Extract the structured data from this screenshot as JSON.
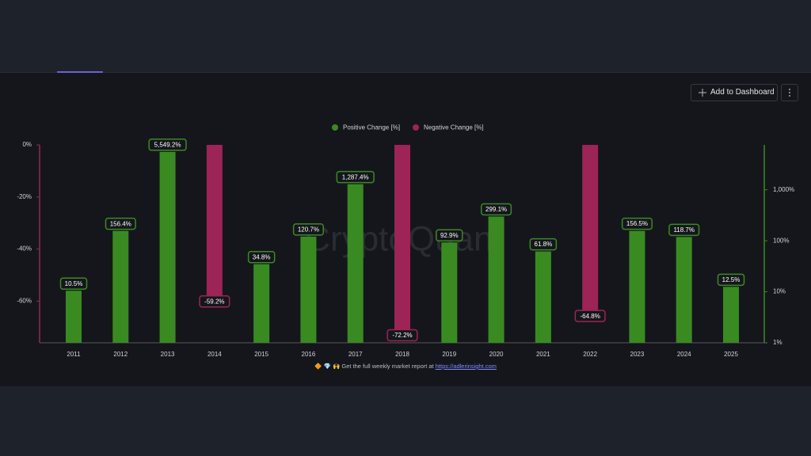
{
  "toolbar": {
    "button": "Add to Dashboard"
  },
  "chart_data": {
    "type": "bar",
    "watermark": "CryptoQuant",
    "categories": [
      "2011",
      "2012",
      "2013",
      "2014",
      "2015",
      "2016",
      "2017",
      "2018",
      "2019",
      "2020",
      "2021",
      "2022",
      "2023",
      "2024",
      "2025"
    ],
    "series": [
      {
        "name": "Positive Change [%]",
        "color": "#3a8a22",
        "axis": "y2",
        "values": [
          10.5,
          156.4,
          5549.2,
          null,
          34.8,
          120.7,
          1287.4,
          null,
          92.9,
          299.1,
          61.8,
          null,
          156.5,
          118.7,
          12.5
        ],
        "value_labels": [
          "10.5%",
          "156.4%",
          "5,549.2%",
          null,
          "34.8%",
          "120.7%",
          "1,287.4%",
          null,
          "92.9%",
          "299.1%",
          "61.8%",
          null,
          "156.5%",
          "118.7%",
          "12.5%"
        ]
      },
      {
        "name": "Negative Change [%]",
        "color": "#9c2457",
        "values": [
          null,
          null,
          null,
          -59.2,
          null,
          null,
          null,
          -72.2,
          null,
          null,
          null,
          -64.8,
          null,
          null,
          null
        ],
        "value_labels": [
          null,
          null,
          null,
          "-59.2%",
          null,
          null,
          null,
          "-72.2%",
          null,
          null,
          null,
          "-64.8%",
          null,
          null,
          null
        ]
      }
    ],
    "ylim": [
      -76,
      0
    ],
    "yticks": [
      {
        "value": 0,
        "label": "0%"
      },
      {
        "value": -20,
        "label": "-20%"
      },
      {
        "value": -40,
        "label": "-40%"
      },
      {
        "value": -60,
        "label": "-60%"
      }
    ],
    "y2lim": [
      1,
      7600
    ],
    "y2scale": "log",
    "y2ticks": [
      {
        "value": 1,
        "label": "1%"
      },
      {
        "value": 10,
        "label": "10%"
      },
      {
        "value": 100,
        "label": "100%"
      },
      {
        "value": 1000,
        "label": "1,000%"
      }
    ],
    "legend": "top",
    "footer": {
      "text": "🔶 💎 🙌 Get the full weekly market report at ",
      "link": "https://adlerinsight.com"
    }
  }
}
